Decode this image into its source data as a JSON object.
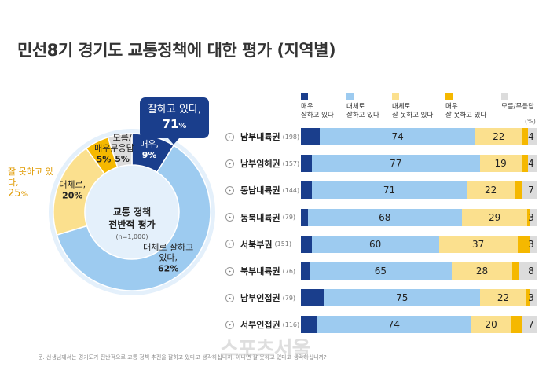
{
  "title": "민선8기 경기도 교통정책에 대한 평가 (지역별)",
  "callout": {
    "line1": "잘하고 있다,",
    "value": "71",
    "unit": "%"
  },
  "outside_label": {
    "text": "잘 못하고 있다,",
    "value": "25",
    "unit": "%"
  },
  "center": {
    "line1": "교통 정책",
    "line2": "전반적 평가",
    "n": "(n=1,000)"
  },
  "unit_label": "(%)",
  "footnote": "문. 선생님께서는 경기도가 전반적으로 교통 정책 추진을 잘하고 있다고 생각하십니까, 아니면 잘 못하고 있다고 생각하십니까?",
  "watermark": "스포츠서울",
  "colors": {
    "very_good": "#1a3e8c",
    "good": "#9dcbf0",
    "bad": "#fbe08e",
    "very_bad": "#f5b800",
    "dk": "#dcdcdc"
  },
  "chart_data": [
    {
      "type": "pie",
      "title": "교통 정책 전반적 평가",
      "note": "(n=1,000)",
      "slices": [
        {
          "label_lines": [
            "매우,"
          ],
          "value": 9
        },
        {
          "label_lines": [
            "대체로 잘하고",
            "있다,"
          ],
          "value": 62
        },
        {
          "label_lines": [
            "대체로,"
          ],
          "value": 20
        },
        {
          "label_lines": [
            "매우,"
          ],
          "value": 5
        },
        {
          "label_lines": [
            "모름/",
            "무응답"
          ],
          "value": 5
        }
      ]
    },
    {
      "type": "bar",
      "stacked": true,
      "unit": "%",
      "legend": [
        {
          "line1": "매우",
          "line2": "잘하고 있다"
        },
        {
          "line1": "대체로",
          "line2": "잘하고 있다"
        },
        {
          "line1": "대체로",
          "line2": "잘 못하고 있다"
        },
        {
          "line1": "매우",
          "line2": "잘 못하고 있다"
        },
        {
          "line1": "모름/무응답",
          "line2": ""
        }
      ],
      "categories": [
        "남부내륙권",
        "남부임해권",
        "동남내륙권",
        "동북내륙권",
        "서북부권",
        "북부내륙권",
        "남부인접권",
        "서부인접권"
      ],
      "n": [
        "(198)",
        "(157)",
        "(144)",
        "(79)",
        "(151)",
        "(76)",
        "(79)",
        "(116)"
      ],
      "series": [
        {
          "values": [
            9,
            5,
            5,
            3,
            5,
            4,
            11,
            8
          ]
        },
        {
          "values": [
            74,
            77,
            71,
            68,
            60,
            65,
            75,
            74
          ]
        },
        {
          "values": [
            22,
            19,
            22,
            29,
            37,
            28,
            22,
            20
          ]
        },
        {
          "values": [
            3,
            3,
            3,
            1,
            6,
            3,
            2,
            5
          ]
        },
        {
          "values": [
            4,
            4,
            7,
            3,
            3,
            8,
            3,
            7
          ]
        }
      ],
      "value_labels": [
        [
          "",
          "74",
          "22",
          "",
          "4"
        ],
        [
          "",
          "77",
          "19",
          "",
          "4"
        ],
        [
          "",
          "71",
          "22",
          "",
          "7"
        ],
        [
          "",
          "68",
          "29",
          "",
          "3"
        ],
        [
          "",
          "60",
          "37",
          "",
          "3"
        ],
        [
          "",
          "65",
          "28",
          "",
          "8"
        ],
        [
          "",
          "75",
          "22",
          "",
          "3"
        ],
        [
          "",
          "74",
          "20",
          "",
          "7"
        ]
      ]
    }
  ]
}
